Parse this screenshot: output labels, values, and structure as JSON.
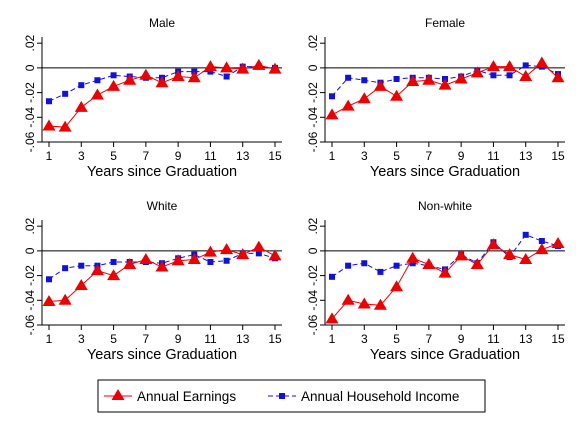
{
  "colors": {
    "earnings": "#ee0000",
    "household": "#1010e0",
    "axis": "#000000",
    "background": "#ffffff"
  },
  "legend": {
    "earnings_label": "Annual Earnings",
    "household_label": "Annual Household Income",
    "earnings_marker": "triangle",
    "household_marker": "square"
  },
  "chart_data": [
    {
      "type": "line",
      "title": "Male",
      "xlabel": "Years since Graduation",
      "ylabel": "",
      "x": [
        1,
        2,
        3,
        4,
        5,
        6,
        7,
        8,
        9,
        10,
        11,
        12,
        13,
        14,
        15
      ],
      "xticks": [
        "1",
        "3",
        "5",
        "7",
        "9",
        "11",
        "13",
        "15"
      ],
      "yticks": [
        "-.06",
        "-.04",
        "-.02",
        "0",
        ".02"
      ],
      "ylim": [
        -0.06,
        0.025
      ],
      "reference_line": 0,
      "series": [
        {
          "name": "Annual Earnings",
          "values": [
            -0.047,
            -0.048,
            -0.032,
            -0.022,
            -0.015,
            -0.01,
            -0.006,
            -0.012,
            -0.007,
            -0.008,
            0.001,
            0.0,
            -0.001,
            0.002,
            -0.001
          ]
        },
        {
          "name": "Annual Household Income",
          "values": [
            -0.027,
            -0.021,
            -0.014,
            -0.01,
            -0.006,
            -0.007,
            -0.008,
            -0.008,
            -0.003,
            -0.003,
            -0.003,
            -0.007,
            0.001,
            0.001,
            0.0
          ]
        }
      ]
    },
    {
      "type": "line",
      "title": "Female",
      "xlabel": "Years since Graduation",
      "ylabel": "",
      "x": [
        1,
        2,
        3,
        4,
        5,
        6,
        7,
        8,
        9,
        10,
        11,
        12,
        13,
        14,
        15
      ],
      "xticks": [
        "1",
        "3",
        "5",
        "7",
        "9",
        "11",
        "13",
        "15"
      ],
      "yticks": [
        "-.06",
        "-.04",
        "-.02",
        "0",
        ".02"
      ],
      "ylim": [
        -0.06,
        0.025
      ],
      "reference_line": 0,
      "series": [
        {
          "name": "Annual Earnings",
          "values": [
            -0.038,
            -0.031,
            -0.025,
            -0.015,
            -0.023,
            -0.011,
            -0.01,
            -0.014,
            -0.009,
            -0.004,
            0.001,
            0.001,
            -0.007,
            0.004,
            -0.008
          ]
        },
        {
          "name": "Annual Household Income",
          "values": [
            -0.023,
            -0.008,
            -0.01,
            -0.012,
            -0.009,
            -0.008,
            -0.008,
            -0.009,
            -0.007,
            -0.002,
            -0.006,
            -0.006,
            0.002,
            0.001,
            -0.005
          ]
        }
      ]
    },
    {
      "type": "line",
      "title": "White",
      "xlabel": "Years since Graduation",
      "ylabel": "",
      "x": [
        1,
        2,
        3,
        4,
        5,
        6,
        7,
        8,
        9,
        10,
        11,
        12,
        13,
        14,
        15
      ],
      "xticks": [
        "1",
        "3",
        "5",
        "7",
        "9",
        "11",
        "13",
        "15"
      ],
      "yticks": [
        "-.06",
        "-.04",
        "-.02",
        "0",
        ".02"
      ],
      "ylim": [
        -0.06,
        0.025
      ],
      "reference_line": 0,
      "series": [
        {
          "name": "Annual Earnings",
          "values": [
            -0.041,
            -0.04,
            -0.028,
            -0.016,
            -0.02,
            -0.011,
            -0.007,
            -0.013,
            -0.008,
            -0.007,
            -0.001,
            0.001,
            -0.003,
            0.003,
            -0.004
          ]
        },
        {
          "name": "Annual Household Income",
          "values": [
            -0.023,
            -0.014,
            -0.012,
            -0.012,
            -0.009,
            -0.009,
            -0.009,
            -0.01,
            -0.006,
            -0.003,
            -0.009,
            -0.008,
            -0.002,
            -0.002,
            -0.006
          ]
        }
      ]
    },
    {
      "type": "line",
      "title": "Non-white",
      "xlabel": "Years since Graduation",
      "ylabel": "",
      "x": [
        1,
        2,
        3,
        4,
        5,
        6,
        7,
        8,
        9,
        10,
        11,
        12,
        13,
        14,
        15
      ],
      "xticks": [
        "1",
        "3",
        "5",
        "7",
        "9",
        "11",
        "13",
        "15"
      ],
      "yticks": [
        "-.06",
        "-.04",
        "-.02",
        "0",
        ".02"
      ],
      "ylim": [
        -0.06,
        0.025
      ],
      "reference_line": 0,
      "series": [
        {
          "name": "Annual Earnings",
          "values": [
            -0.055,
            -0.04,
            -0.043,
            -0.044,
            -0.029,
            -0.006,
            -0.011,
            -0.018,
            -0.004,
            -0.011,
            0.005,
            -0.003,
            -0.007,
            0.001,
            0.006
          ]
        },
        {
          "name": "Annual Household Income",
          "values": [
            -0.021,
            -0.012,
            -0.01,
            -0.017,
            -0.012,
            -0.01,
            -0.012,
            -0.015,
            -0.003,
            -0.01,
            0.007,
            -0.005,
            0.013,
            0.008,
            0.004
          ]
        }
      ]
    }
  ]
}
